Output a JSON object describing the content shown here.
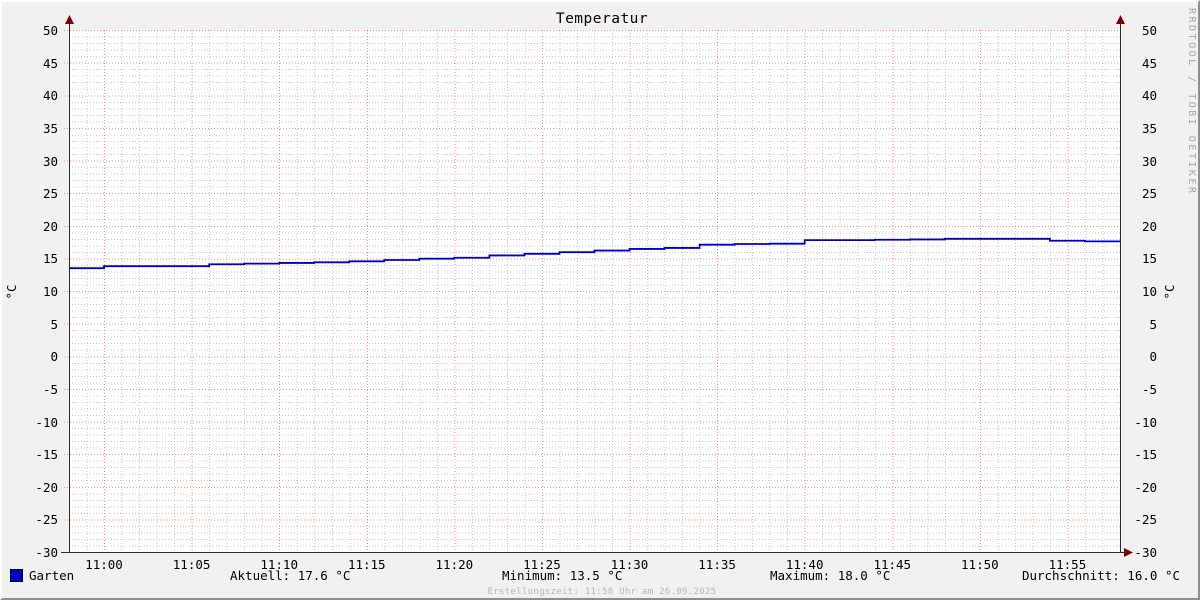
{
  "title": "Temperatur",
  "y_axis_unit_left": "°C",
  "y_axis_unit_right": "°C",
  "watermark": "RRDTOOL / TOBI OETIKER",
  "footer": "Erstellungszeit: 11:58 Uhr am 26.09.2025",
  "legend": {
    "series_label": "Garten",
    "current": "Aktuell: 17.6 °C",
    "minimum": "Minimum: 13.5 °C",
    "maximum": "Maximum: 18.0 °C",
    "average": "Durchschnitt: 16.0 °C"
  },
  "colors": {
    "background": "#f1f1f1",
    "canvas": "#ffffff",
    "major_grid": "#ff3333",
    "minor_grid": "#999999",
    "axis": "#2b2b2b",
    "arrow": "#7f0000",
    "line": "#0000cc"
  },
  "chart_data": {
    "type": "line",
    "line_style": "step",
    "title": "Temperatur",
    "xlabel": "",
    "ylabel": "°C",
    "ylim": [
      -30,
      50
    ],
    "y_tick_step": 5,
    "minor_y_step": 1,
    "x_range": [
      "10:58",
      "11:58"
    ],
    "minor_x_step_minutes": 1,
    "major_x_step_minutes": 5,
    "grid": true,
    "legend_position": "bottom",
    "y_ticks": [
      50,
      45,
      40,
      35,
      30,
      25,
      20,
      15,
      10,
      5,
      0,
      -5,
      -10,
      -15,
      -20,
      -25,
      -30
    ],
    "x_ticks": [
      "11:00",
      "11:05",
      "11:10",
      "11:15",
      "11:20",
      "11:25",
      "11:30",
      "11:35",
      "11:40",
      "11:45",
      "11:50",
      "11:55"
    ],
    "series": [
      {
        "name": "Garten",
        "color": "#0000cc",
        "points": [
          [
            "10:58",
            13.5
          ],
          [
            "11:00",
            13.8
          ],
          [
            "11:06",
            14.1
          ],
          [
            "11:08",
            14.2
          ],
          [
            "11:10",
            14.3
          ],
          [
            "11:12",
            14.4
          ],
          [
            "11:14",
            14.55
          ],
          [
            "11:16",
            14.75
          ],
          [
            "11:18",
            14.95
          ],
          [
            "11:20",
            15.1
          ],
          [
            "11:22",
            15.45
          ],
          [
            "11:24",
            15.7
          ],
          [
            "11:26",
            15.95
          ],
          [
            "11:28",
            16.2
          ],
          [
            "11:30",
            16.45
          ],
          [
            "11:32",
            16.6
          ],
          [
            "11:34",
            17.1
          ],
          [
            "11:36",
            17.2
          ],
          [
            "11:38",
            17.25
          ],
          [
            "11:40",
            17.8
          ],
          [
            "11:44",
            17.85
          ],
          [
            "11:46",
            17.9
          ],
          [
            "11:48",
            18.0
          ],
          [
            "11:54",
            17.7
          ],
          [
            "11:56",
            17.6
          ],
          [
            "11:58",
            17.6
          ]
        ]
      }
    ],
    "stats": {
      "current": 17.6,
      "min": 13.5,
      "max": 18.0,
      "avg": 16.0
    }
  }
}
